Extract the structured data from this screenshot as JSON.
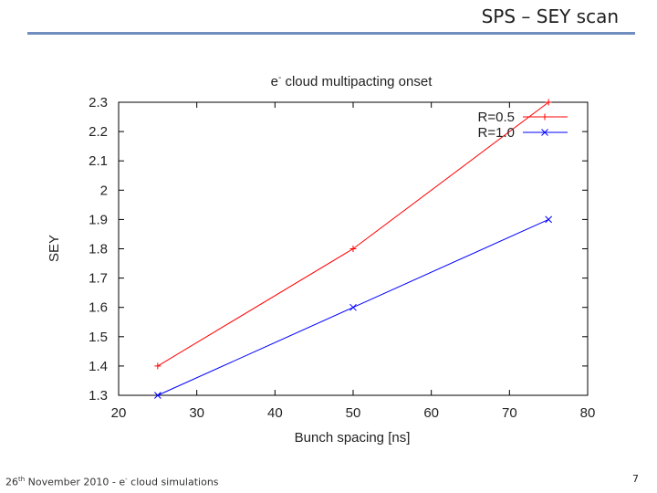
{
  "slide": {
    "title": "SPS – SEY scan",
    "footer_date_day": "26",
    "footer_date_sup": "th",
    "footer_date_rest": " November 2010  -  e",
    "footer_e_sup": "-",
    "footer_topic": " cloud simulations",
    "page_number": "7"
  },
  "chart_data": {
    "type": "line",
    "title_base": "e",
    "title_sup": "-",
    "title_rest": " cloud multipacting onset",
    "xlabel": "Bunch spacing [ns]",
    "ylabel": "SEY",
    "xlim": [
      20,
      80
    ],
    "ylim": [
      1.3,
      2.3
    ],
    "x_ticks": [
      20,
      30,
      40,
      50,
      60,
      70,
      80
    ],
    "y_ticks": [
      1.3,
      1.4,
      1.5,
      1.6,
      1.7,
      1.8,
      1.9,
      2,
      2.1,
      2.2,
      2.3
    ],
    "legend_position": "top-right",
    "grid": false,
    "series": [
      {
        "name": "R=0.5",
        "color": "#ff0000",
        "marker": "+",
        "x": [
          25,
          50,
          75
        ],
        "y": [
          1.4,
          1.8,
          2.3
        ]
      },
      {
        "name": "R=1.0",
        "color": "#0000ff",
        "marker": "x",
        "x": [
          25,
          50,
          75
        ],
        "y": [
          1.3,
          1.6,
          1.9
        ]
      }
    ]
  }
}
